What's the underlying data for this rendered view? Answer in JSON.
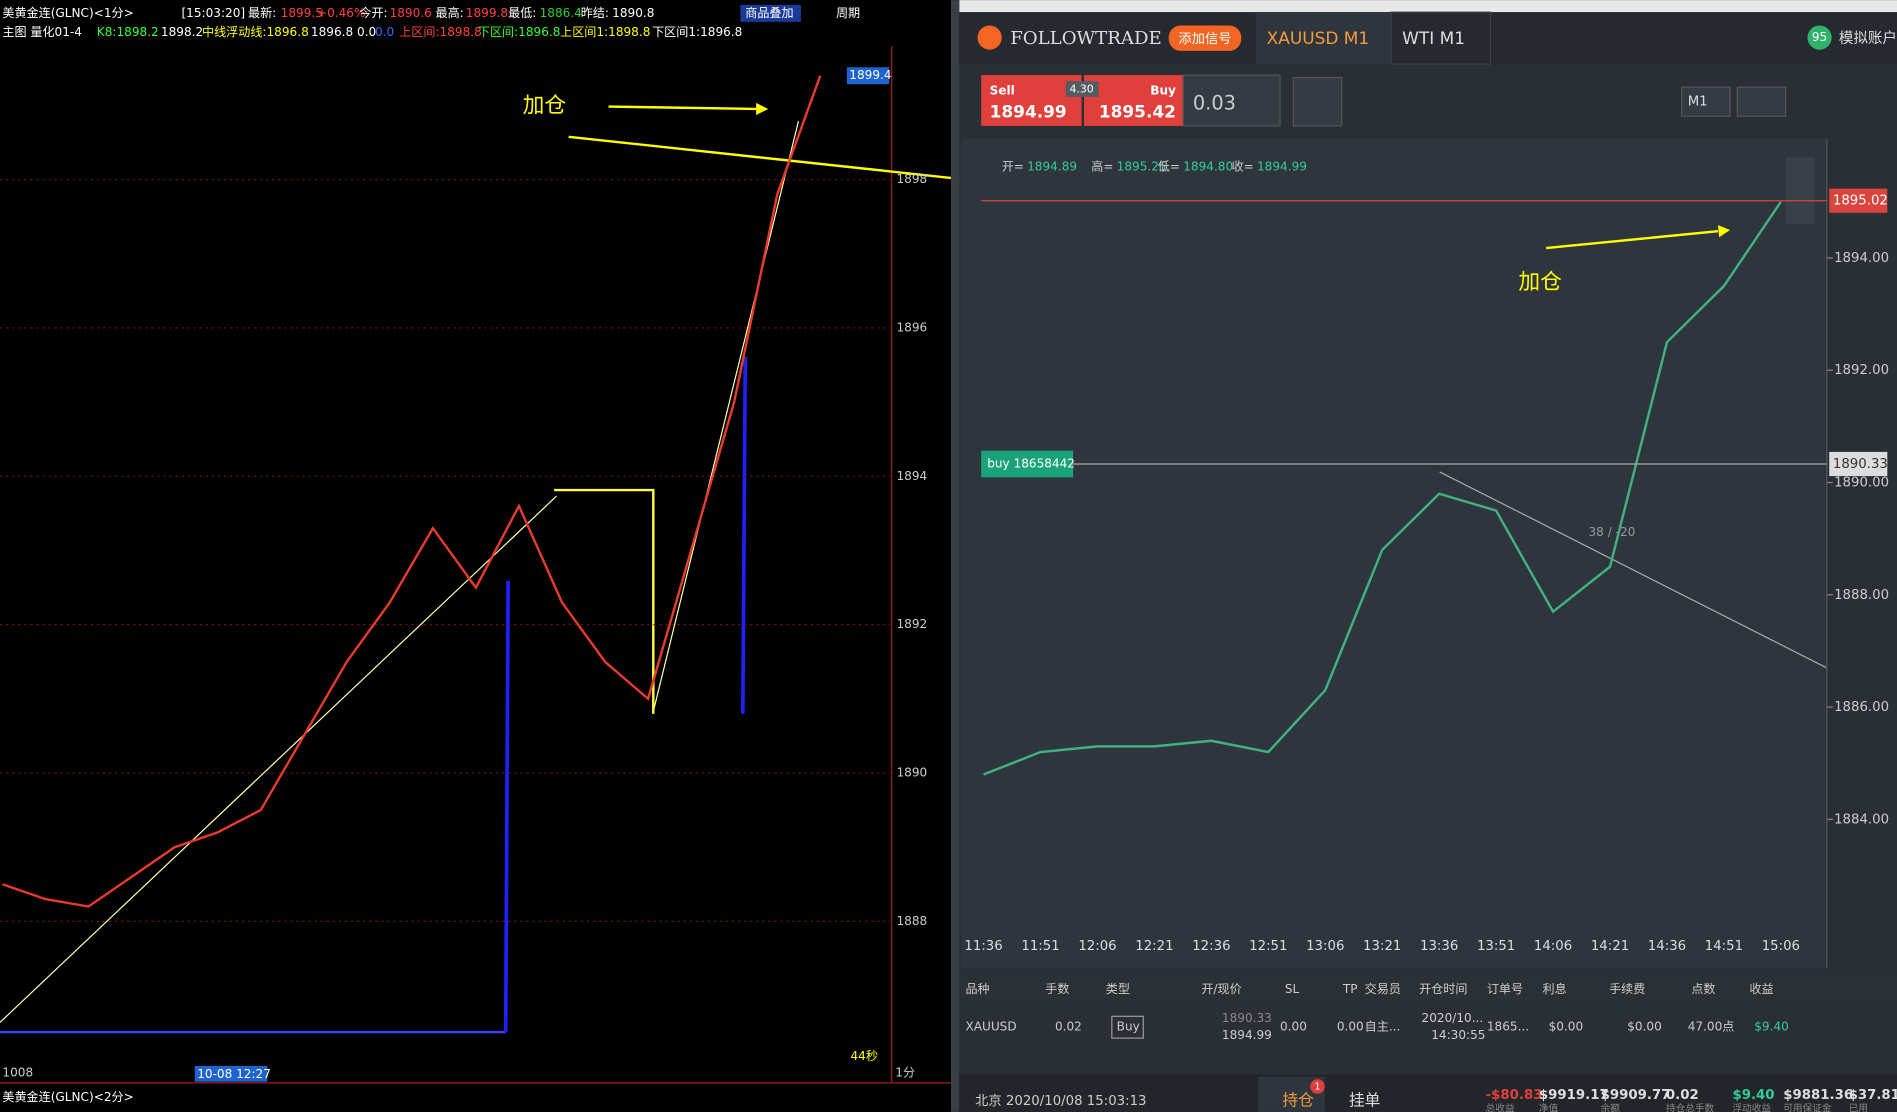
{
  "left_chart": {
    "type": "line",
    "header": {
      "title": "美黄金连(GLNC)<1分>",
      "time": "[15:03:20]",
      "latest_label": "最新:",
      "latest": "1899.5",
      "change": "+0.46%",
      "open_label": "今开:",
      "open": "1890.6",
      "high_label": "最高:",
      "high": "1899.8",
      "low_label": "最低:",
      "low": "1886.4",
      "prev_label": "昨结:",
      "prev": "1890.8",
      "overlay": "商品叠加",
      "period": "周期"
    },
    "indicator": [
      "主图 量化01-4",
      "K8:1898.2",
      "1898.2",
      "中线浮动线:1896.8",
      "1896.8 0.0",
      "0.0",
      "上区间:1898.8",
      "下区间:1896.8",
      "上区间1:1898.8",
      "下区间1:1896.8"
    ],
    "ylim": [
      1886.1,
      1899.8
    ],
    "yticks": [
      1888,
      1890,
      1892,
      1894,
      1896,
      1898
    ],
    "last_price": 1899.4,
    "values": [
      1888.5,
      1888.3,
      1888.2,
      1888.6,
      1889.0,
      1889.2,
      1889.5,
      1890.5,
      1891.5,
      1892.3,
      1893.3,
      1892.5,
      1893.6,
      1892.3,
      1891.5,
      1891.0,
      1893.0,
      1895.0,
      1897.8,
      1899.4
    ],
    "color": "#e83a2e",
    "annotation": "加仓",
    "footer": {
      "left": "1008",
      "date": "10-08 12:27",
      "countdown": "44秒",
      "period": "1分"
    },
    "second_title": "美黄金连(GLNC)<2分>"
  },
  "right_chart": {
    "type": "line",
    "toolbar": {
      "brand": "FOLLOWTRADE",
      "add_signal": "添加信号",
      "tab_active": "XAUUSD M1",
      "tab_other": "WTI M1",
      "badge": "95",
      "account": "模拟账户"
    },
    "trade": {
      "sell_label": "Sell",
      "sell_price": "1894.99",
      "spread": "4.30",
      "buy_label": "Buy",
      "buy_price": "1895.42",
      "lots": "0.03",
      "timeframe": "M1"
    },
    "ohlc": [
      "开=",
      "1894.89",
      "高=",
      "1895.25",
      "低=",
      "1894.80",
      "收=",
      "1894.99"
    ],
    "categories": [
      "11:36",
      "11:51",
      "12:06",
      "12:21",
      "12:36",
      "12:51",
      "13:06",
      "13:21",
      "13:36",
      "13:51",
      "14:06",
      "14:21",
      "14:36",
      "14:51",
      "15:06"
    ],
    "values": [
      1884.8,
      1885.2,
      1885.3,
      1885.3,
      1885.4,
      1885.2,
      1886.3,
      1888.8,
      1889.8,
      1889.5,
      1887.7,
      1888.5,
      1892.5,
      1893.5,
      1895.0
    ],
    "color": "#3fb27f",
    "ylim": [
      1882.0,
      1895.9
    ],
    "yticks": [
      {
        "value": 1884,
        "label": "1884.00"
      },
      {
        "value": 1886,
        "label": "1886.00"
      },
      {
        "value": 1888,
        "label": "1888.00"
      },
      {
        "value": 1890,
        "label": "1890.00"
      },
      {
        "value": 1892,
        "label": "1892.00"
      },
      {
        "value": 1894,
        "label": "1894.00"
      }
    ],
    "current_price": 1895.02,
    "position_price": 1890.33,
    "position_label": "buy 18658442",
    "trend_label": "38 / -20",
    "annotation": "加仓"
  },
  "table": {
    "headers": [
      "品种",
      "手数",
      "类型",
      "开/现价",
      "SL",
      "TP",
      "交易员",
      "开仓时间",
      "订单号",
      "利息",
      "手续费",
      "点数",
      "收益"
    ],
    "row": [
      "XAUUSD",
      "0.02",
      "Buy",
      "1890.33",
      "1894.99",
      "0.00",
      "0.00",
      "自主...",
      "2020/10...",
      "14:30:55",
      "1865...",
      "$0.00",
      "$0.00",
      "47.00点",
      "$9.40"
    ]
  },
  "status": {
    "clock": "北京 2020/10/08 15:03:13",
    "positions_tab": "持仓",
    "positions_count": "1",
    "orders_tab": "挂单",
    "values": [
      "-$80.83",
      "$9919.17",
      "$9909.77",
      "0.02",
      "$9.40",
      "$9881.36",
      "$37.81"
    ],
    "labels": [
      "总收益",
      "净值",
      "余额",
      "持仓总手数",
      "浮动收益",
      "可用保证金",
      "已用"
    ]
  }
}
